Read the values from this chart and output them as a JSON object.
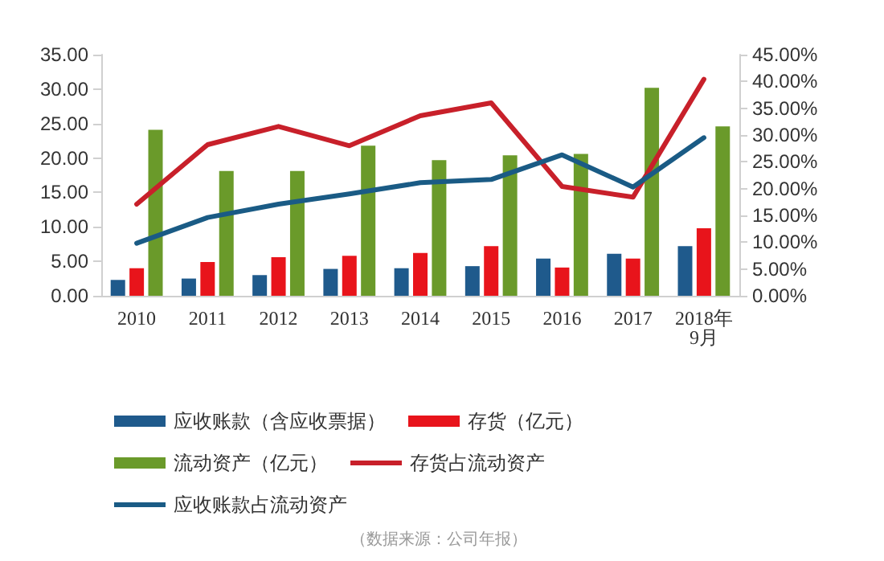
{
  "chart_data": {
    "type": "bar",
    "categories": [
      "2010",
      "2011",
      "2012",
      "2013",
      "2014",
      "2015",
      "2016",
      "2017",
      "2018年9月"
    ],
    "series": [
      {
        "name": "应收账款（含应收票据）",
        "color": "#1f5a8c",
        "values": [
          2.3,
          2.5,
          3.0,
          3.9,
          4.0,
          4.3,
          5.4,
          6.1,
          7.2
        ]
      },
      {
        "name": "存货（亿元）",
        "color": "#e8141b",
        "values": [
          4.0,
          4.9,
          5.6,
          5.8,
          6.2,
          7.2,
          4.1,
          5.4,
          9.8
        ]
      },
      {
        "name": "流动资产（亿元）",
        "color": "#6a9a2a",
        "values": [
          24.1,
          18.1,
          18.1,
          21.8,
          19.7,
          20.4,
          20.6,
          30.2,
          24.6
        ]
      },
      {
        "name": "存货占流动资产",
        "type": "line",
        "axis": "y2",
        "color": "#c8202a",
        "values": [
          17.1,
          28.2,
          31.6,
          28.0,
          33.6,
          36.0,
          20.4,
          18.4,
          40.4
        ]
      },
      {
        "name": "应收账款占流动资产",
        "type": "line",
        "axis": "y2",
        "color": "#1a5b85",
        "values": [
          9.8,
          14.6,
          17.1,
          19.0,
          21.1,
          21.7,
          26.3,
          20.3,
          29.5
        ]
      }
    ],
    "ylim": [
      0,
      35
    ],
    "yticks": [
      {
        "value": 0,
        "label": "0.00"
      },
      {
        "value": 5,
        "label": "5.00"
      },
      {
        "value": 10,
        "label": "10.00"
      },
      {
        "value": 15,
        "label": "15.00"
      },
      {
        "value": 20,
        "label": "20.00"
      },
      {
        "value": 25,
        "label": "25.00"
      },
      {
        "value": 30,
        "label": "30.00"
      },
      {
        "value": 35,
        "label": "35.00"
      }
    ],
    "y2lim": [
      0,
      45
    ],
    "y2ticks": [
      {
        "value": 0,
        "label": "0.00%"
      },
      {
        "value": 5,
        "label": "5.00%"
      },
      {
        "value": 10,
        "label": "10.00%"
      },
      {
        "value": 15,
        "label": "15.00%"
      },
      {
        "value": 20,
        "label": "20.00%"
      },
      {
        "value": 25,
        "label": "25.00%"
      },
      {
        "value": 30,
        "label": "30.00%"
      },
      {
        "value": 35,
        "label": "35.00%"
      },
      {
        "value": 40,
        "label": "40.00%"
      },
      {
        "value": 45,
        "label": "45.00%"
      }
    ],
    "legend": "bottom",
    "grid": false,
    "marker": "none",
    "line_style": "solid",
    "annotations": [
      "（数据来源：公司年报）"
    ]
  }
}
